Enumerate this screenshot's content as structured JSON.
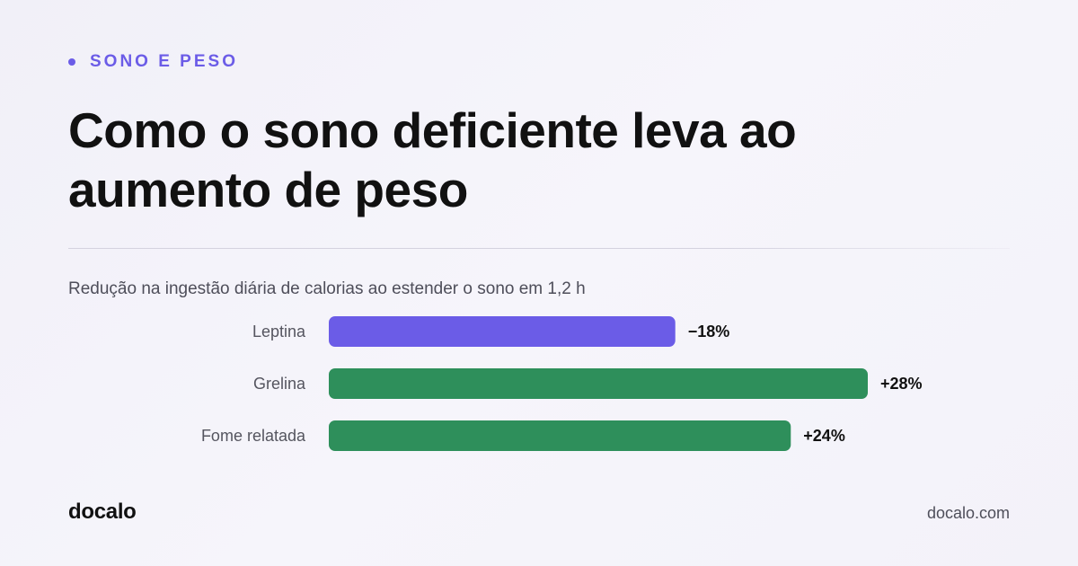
{
  "header": {
    "kicker": "SONO E PESO",
    "title": "Como o sono deficiente leva ao aumento de peso"
  },
  "chart_data": {
    "type": "bar",
    "orientation": "horizontal",
    "title": "Redução na ingestão diária de calorias ao estender o sono em 1,2 h",
    "categories": [
      "Leptina",
      "Grelina",
      "Fome relatada"
    ],
    "values": [
      -18,
      28,
      24
    ],
    "value_labels": [
      "−18%",
      "+28%",
      "+24%"
    ],
    "colors": [
      "#6b5ce7",
      "#2e8f5b",
      "#2e8f5b"
    ],
    "xlim": [
      0,
      28
    ],
    "grid": false,
    "legend": "none"
  },
  "footer": {
    "brand": "docalo",
    "site": "docalo.com"
  },
  "colors": {
    "accent": "#6b5ce7",
    "positive": "#2e8f5b",
    "text": "#111111",
    "muted": "#4e4e5a"
  }
}
